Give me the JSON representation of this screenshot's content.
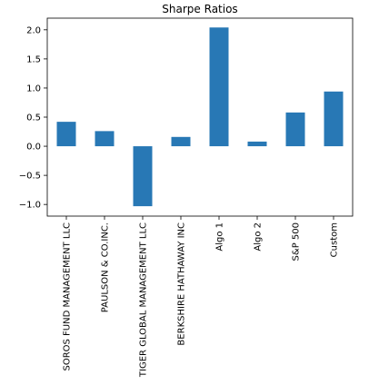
{
  "chart_data": {
    "type": "bar",
    "title": "Sharpe Ratios",
    "xlabel": "",
    "ylabel": "",
    "categories": [
      "SOROS FUND MANAGEMENT LLC",
      "PAULSON & CO.INC.",
      "TIGER GLOBAL MANAGEMENT LLC",
      "BERKSHIRE HATHAWAY INC",
      "Algo 1",
      "Algo 2",
      "S&P 500",
      "Custom"
    ],
    "values": [
      0.42,
      0.26,
      -1.03,
      0.16,
      2.04,
      0.08,
      0.58,
      0.94
    ],
    "ylim": [
      -1.2,
      2.2
    ],
    "yticks": [
      -1.0,
      -0.5,
      0.0,
      0.5,
      1.0,
      1.5,
      2.0
    ],
    "ytick_labels": [
      "−1.0",
      "−0.5",
      "0.0",
      "0.5",
      "1.0",
      "1.5",
      "2.0"
    ],
    "bar_color": "#2878b5",
    "grid": false,
    "legend": "none"
  }
}
